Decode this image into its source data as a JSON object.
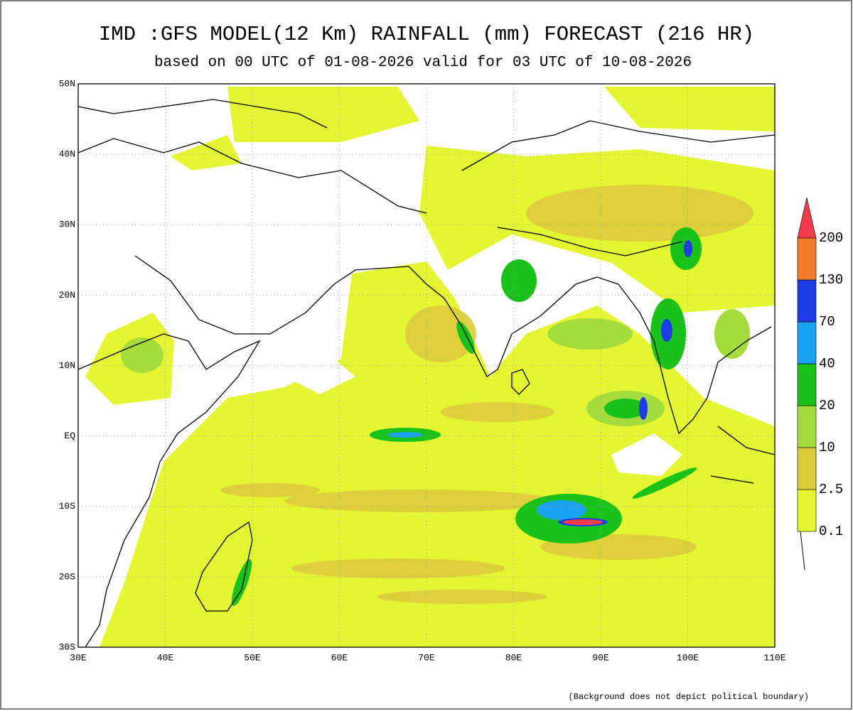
{
  "title": "IMD :GFS MODEL(12 Km) RAINFALL (mm) FORECAST (216 HR)",
  "subtitle": "based on 00 UTC of 01-08-2026 valid for 03 UTC of 10-08-2026",
  "map": {
    "lat_ticks": [
      "50N",
      "40N",
      "30N",
      "20N",
      "10N",
      "EQ",
      "10S",
      "20S",
      "30S"
    ],
    "lon_ticks": [
      "30E",
      "40E",
      "50E",
      "60E",
      "70E",
      "80E",
      "90E",
      "100E",
      "110E"
    ]
  },
  "legend": {
    "levels": [
      "0.1",
      "2.5",
      "10",
      "20",
      "40",
      "70",
      "130",
      "200"
    ]
  },
  "note": "(Background does not depict political boundary)"
}
